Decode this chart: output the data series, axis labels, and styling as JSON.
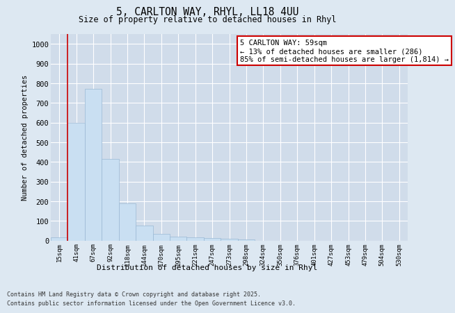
{
  "title1": "5, CARLTON WAY, RHYL, LL18 4UU",
  "title2": "Size of property relative to detached houses in Rhyl",
  "xlabel": "Distribution of detached houses by size in Rhyl",
  "ylabel": "Number of detached properties",
  "bar_labels": [
    "15sqm",
    "41sqm",
    "67sqm",
    "92sqm",
    "118sqm",
    "144sqm",
    "170sqm",
    "195sqm",
    "221sqm",
    "247sqm",
    "273sqm",
    "298sqm",
    "324sqm",
    "350sqm",
    "376sqm",
    "401sqm",
    "427sqm",
    "453sqm",
    "479sqm",
    "504sqm",
    "530sqm"
  ],
  "bar_values": [
    15,
    600,
    770,
    415,
    190,
    75,
    35,
    18,
    15,
    12,
    10,
    5,
    0,
    0,
    0,
    0,
    0,
    0,
    0,
    0,
    0
  ],
  "bar_color": "#c9dff2",
  "bar_edge_color": "#9ab8d4",
  "vline_x": 0.5,
  "vline_color": "#cc0000",
  "annotation_text": "5 CARLTON WAY: 59sqm\n← 13% of detached houses are smaller (286)\n85% of semi-detached houses are larger (1,814) →",
  "annotation_box_facecolor": "white",
  "annotation_box_edgecolor": "#cc0000",
  "ylim_max": 1050,
  "ytick_values": [
    0,
    100,
    200,
    300,
    400,
    500,
    600,
    700,
    800,
    900,
    1000
  ],
  "fig_facecolor": "#dde8f2",
  "axes_facecolor": "#d0dcea",
  "grid_color": "#ffffff",
  "footer1": "Contains HM Land Registry data © Crown copyright and database right 2025.",
  "footer2": "Contains public sector information licensed under the Open Government Licence v3.0."
}
